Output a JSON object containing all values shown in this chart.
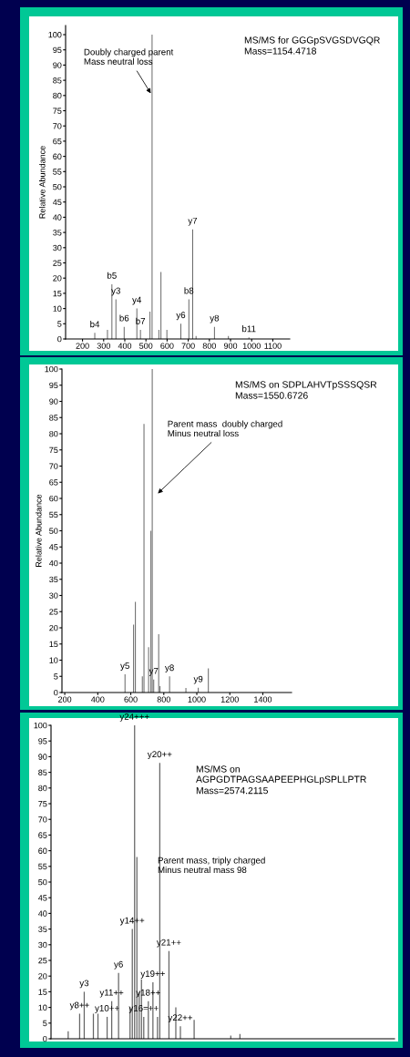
{
  "chart_data": [
    {
      "type": "bar",
      "title": "MS/MS for GGGpSVGSDVGQR",
      "subtitle": "Mass=1154.4718",
      "ylabel": "Relative Abundance",
      "color": "#666666",
      "x": [
        258,
        318,
        339,
        358,
        397,
        457,
        474,
        519,
        529,
        561,
        571,
        599,
        665,
        703,
        721,
        737,
        824,
        890,
        987
      ],
      "values": [
        2,
        3,
        18,
        13,
        4,
        10,
        3,
        9,
        100,
        3,
        22,
        3,
        5,
        13,
        36,
        1,
        4,
        1,
        0.5
      ],
      "value_labels": [
        "b4",
        null,
        "b5",
        "y3",
        "b6",
        "y4",
        "b7",
        null,
        null,
        null,
        null,
        null,
        "y6",
        "b8",
        "y7",
        null,
        "y8",
        null,
        "b11"
      ],
      "xlim": [
        120,
        1180
      ],
      "xticks": [
        200,
        300,
        400,
        500,
        600,
        700,
        800,
        900,
        1000,
        1100
      ],
      "ylim": [
        0,
        103
      ],
      "yticks": [
        0,
        5,
        10,
        15,
        20,
        25,
        30,
        35,
        40,
        45,
        50,
        55,
        60,
        65,
        70,
        75,
        80,
        85,
        90,
        95,
        100
      ],
      "annotations": [
        {
          "text": "Doubly charged parent\nMass neutral loss",
          "x": 529,
          "y": 80
        }
      ]
    },
    {
      "type": "bar",
      "title": "MS/MS on SDPLAHVTpSSSQSR",
      "subtitle": "Mass=1550.6726",
      "ylabel": "Relative Abundance",
      "color": "#666666",
      "x": [
        565,
        617,
        628,
        670,
        680,
        708,
        722,
        730,
        739,
        769,
        777,
        835,
        934,
        1009,
        1070
      ],
      "values": [
        5.6,
        21,
        28,
        5,
        83,
        14,
        50,
        100,
        4,
        18,
        2,
        5,
        1.4,
        1.5,
        7.5
      ],
      "value_labels": [
        "y5",
        null,
        null,
        null,
        null,
        null,
        null,
        null,
        "y7",
        null,
        null,
        "y8",
        null,
        "y9",
        null
      ],
      "xlim": [
        183,
        1574
      ],
      "xticks": [
        200,
        400,
        600,
        800,
        1000,
        1200,
        1400
      ],
      "ylim": [
        0,
        100
      ],
      "yticks": [
        0,
        5,
        10,
        15,
        20,
        25,
        30,
        35,
        40,
        45,
        50,
        55,
        60,
        65,
        70,
        75,
        80,
        85,
        90,
        95,
        100
      ],
      "annotations": [
        {
          "text": "Parent mass  doubly charged\nMinus neutral loss",
          "x": 753,
          "y": 61
        }
      ]
    },
    {
      "type": "bar",
      "title": "MS/MS on\nAGPGDTPAGSAAPEEPHGLpSPLLPTR",
      "subtitle": "Mass=2574.2115",
      "color": "#666666",
      "categories": [
        null,
        null,
        null,
        null,
        null,
        null,
        null,
        null,
        null,
        null,
        null,
        null,
        null,
        null,
        null,
        null,
        null,
        null,
        null,
        null,
        null,
        null,
        null,
        null,
        null,
        null,
        null,
        null,
        null,
        null,
        null,
        null,
        null,
        null,
        null,
        null,
        null,
        null,
        null,
        null,
        null,
        null,
        null,
        null,
        null,
        null,
        null,
        null,
        null,
        null,
        null,
        null,
        null,
        null,
        null,
        null,
        null,
        null,
        null,
        null,
        null,
        null,
        null,
        null,
        null,
        null,
        null,
        null,
        null,
        null,
        null,
        null,
        null,
        null,
        null,
        null,
        null,
        null,
        null,
        null,
        null,
        null,
        null,
        null,
        null,
        null,
        null,
        null,
        null,
        null,
        null,
        null,
        null,
        null,
        null,
        null,
        null,
        null,
        null,
        null,
        null,
        null,
        null,
        null,
        null,
        null,
        null,
        null,
        null,
        null,
        null,
        null,
        null,
        null,
        null,
        null,
        null,
        null,
        null,
        null,
        null,
        null,
        null,
        null,
        null,
        null,
        null,
        null,
        null,
        null,
        null,
        null,
        null,
        null,
        null,
        null,
        null,
        null,
        null,
        null,
        null,
        null,
        null,
        null,
        null,
        null,
        null,
        null,
        null,
        null
      ],
      "values": [
        0,
        0,
        0,
        0,
        0,
        0,
        0,
        2.4,
        0,
        0,
        0,
        0,
        8,
        0,
        15,
        0,
        0,
        0,
        8,
        0,
        8,
        0,
        0,
        0,
        7,
        0,
        12,
        0,
        0,
        21,
        0,
        0,
        0,
        0,
        10,
        35,
        100,
        58,
        15,
        19,
        7,
        0,
        12,
        0,
        18,
        0,
        7,
        88,
        0,
        0,
        0,
        28,
        0,
        0,
        10,
        0,
        4,
        0,
        0,
        0,
        0,
        0,
        6,
        0,
        0,
        0,
        0,
        0,
        0,
        0,
        0,
        0,
        0,
        0,
        0,
        0,
        0,
        0,
        1,
        0,
        0,
        0,
        1.5,
        0,
        0,
        0,
        0,
        0,
        0,
        0,
        0,
        0,
        0,
        0,
        0,
        0,
        0,
        0,
        0,
        0,
        0,
        0,
        0,
        0,
        0,
        0,
        0,
        0,
        0,
        0,
        0,
        0,
        0,
        0,
        0,
        0,
        0,
        0,
        0,
        0,
        0,
        0,
        0,
        0,
        0,
        0,
        0,
        0,
        0,
        0,
        0,
        0,
        0,
        0,
        0,
        0,
        0,
        0,
        0,
        0,
        0,
        0,
        0,
        0,
        0,
        0,
        0,
        0,
        0,
        0
      ],
      "value_labels": [
        null,
        null,
        null,
        null,
        null,
        null,
        null,
        null,
        null,
        null,
        null,
        null,
        "y8++",
        null,
        "y3",
        null,
        null,
        null,
        null,
        null,
        null,
        null,
        null,
        null,
        "y10++",
        null,
        "y11++",
        null,
        null,
        "y6",
        null,
        null,
        null,
        null,
        null,
        "y14++",
        "y24+++",
        null,
        null,
        null,
        "y16=++",
        null,
        "y18++",
        null,
        "y19++",
        null,
        null,
        "y20++",
        null,
        null,
        null,
        "y21++",
        null,
        null,
        null,
        null,
        "y22++",
        null,
        null,
        null,
        null,
        null,
        null,
        null,
        null,
        null,
        null,
        null,
        null,
        null,
        null,
        null,
        null,
        null,
        null,
        null,
        null,
        null,
        null,
        null,
        null,
        null,
        null,
        null,
        null,
        null,
        null,
        null,
        null,
        null,
        null,
        null,
        null,
        null,
        null,
        null,
        null,
        null,
        null,
        null,
        null,
        null,
        null,
        null,
        null,
        null,
        null,
        null,
        null,
        null,
        null,
        null,
        null,
        null,
        null,
        null,
        null,
        null,
        null,
        null,
        null,
        null,
        null,
        null,
        null,
        null,
        null,
        null,
        null,
        null,
        null,
        null,
        null,
        null,
        null,
        null,
        null,
        null,
        null,
        null,
        null,
        null,
        null,
        null,
        null,
        null,
        null,
        null,
        null,
        null
      ],
      "ylim": [
        0,
        100
      ],
      "yticks": [
        0,
        5,
        10,
        15,
        20,
        25,
        30,
        35,
        40,
        45,
        50,
        55,
        60,
        65,
        70,
        75,
        80,
        85,
        90,
        95,
        100
      ],
      "annotations": [
        "Parent mass, triply charged\nMinus neutral mass 98"
      ]
    }
  ]
}
